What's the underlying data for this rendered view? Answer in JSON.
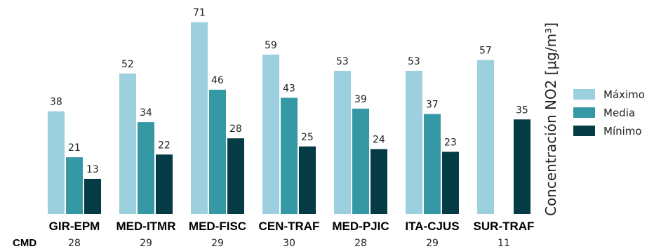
{
  "chart_data": {
    "type": "bar",
    "title": "",
    "xlabel": "",
    "ylabel": "Concentración NO2 [μg/m³]",
    "ylim": [
      0,
      75
    ],
    "grid": false,
    "legend_position": "right",
    "categories": [
      "GIR-EPM",
      "MED-ITMR",
      "MED-FISC",
      "CEN-TRAF",
      "MED-PJIC",
      "ITA-CJUS",
      "SUR-TRAF"
    ],
    "series": [
      {
        "name": "Máximo",
        "color": "#9dd0de",
        "values": [
          38,
          52,
          71,
          59,
          53,
          53,
          57
        ]
      },
      {
        "name": "Media",
        "color": "#3599a5",
        "values": [
          21,
          34,
          46,
          43,
          39,
          37,
          null
        ]
      },
      {
        "name": "Mínimo",
        "color": "#043b45",
        "values": [
          13,
          22,
          28,
          25,
          24,
          23,
          35
        ]
      }
    ],
    "extra_row": {
      "label": "CMD",
      "values": [
        28,
        29,
        29,
        30,
        28,
        29,
        11
      ]
    }
  }
}
